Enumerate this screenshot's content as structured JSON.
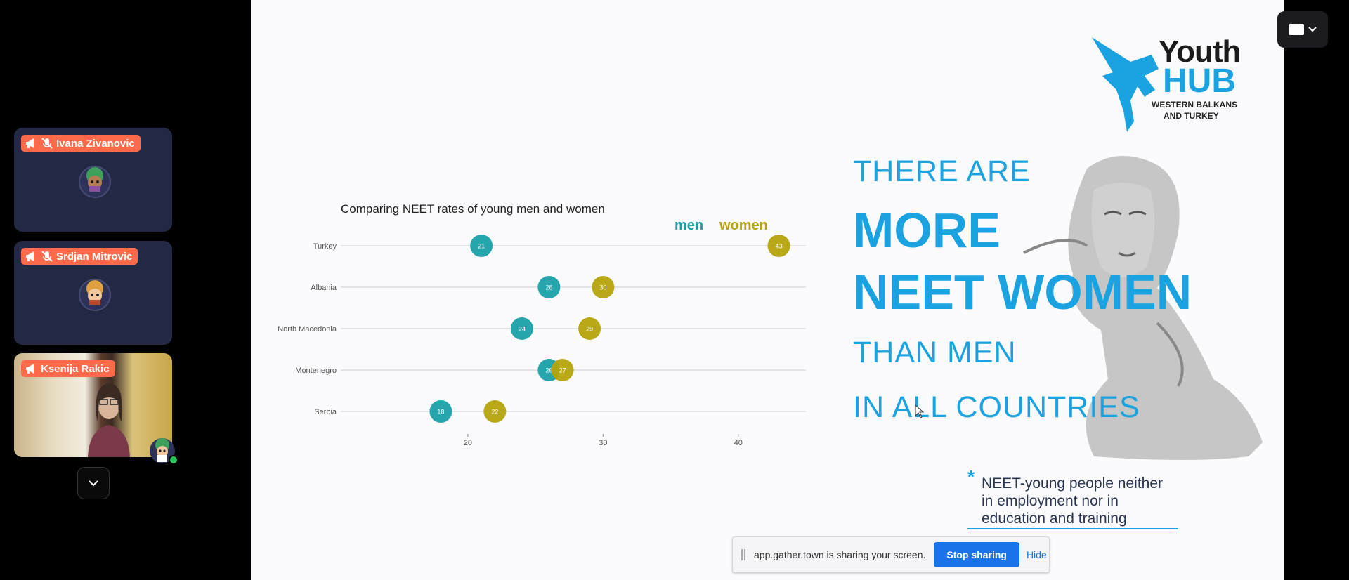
{
  "participants": [
    {
      "name": "Ivana Zivanovic",
      "muted": true,
      "presenting": true
    },
    {
      "name": "Srdjan Mitrovic",
      "muted": true,
      "presenting": true
    },
    {
      "name": "Ksenija Rakic",
      "presenting": true,
      "video": true
    }
  ],
  "slide": {
    "logo": {
      "line1": "Youth",
      "line2": "HUB",
      "line3": "WESTERN BALKANS",
      "line4": "AND TURKEY"
    },
    "headline": {
      "line1": "THERE ARE",
      "line2": "MORE",
      "line3": "NEET WOMEN",
      "line4": "THAN MEN",
      "line5": "IN ALL COUNTRIES"
    },
    "note": {
      "star": "*",
      "line1": "NEET-young people neither",
      "line2": "in employment nor in",
      "line3": "education and training"
    }
  },
  "chart_data": {
    "type": "dot",
    "title": "Comparing NEET rates of young men and women",
    "categories": [
      "Turkey",
      "Albania",
      "North Macedonia",
      "Montenegro",
      "Serbia"
    ],
    "series": [
      {
        "name": "men",
        "color": "#1aa0a8",
        "values": [
          21,
          26,
          24,
          26,
          18
        ]
      },
      {
        "name": "women",
        "color": "#b5a40c",
        "values": [
          43,
          30,
          29,
          27,
          22
        ]
      }
    ],
    "x_ticks": [
      20,
      30,
      40
    ],
    "xlim": [
      10.6,
      45
    ],
    "legend_position": "top-right"
  },
  "share_bar": {
    "message": "app.gather.town is sharing your screen.",
    "stop_label": "Stop sharing",
    "hide_label": "Hide"
  },
  "colors": {
    "accent": "#1aa3e0",
    "badge": "#ff6b4a",
    "tile": "#232845"
  }
}
